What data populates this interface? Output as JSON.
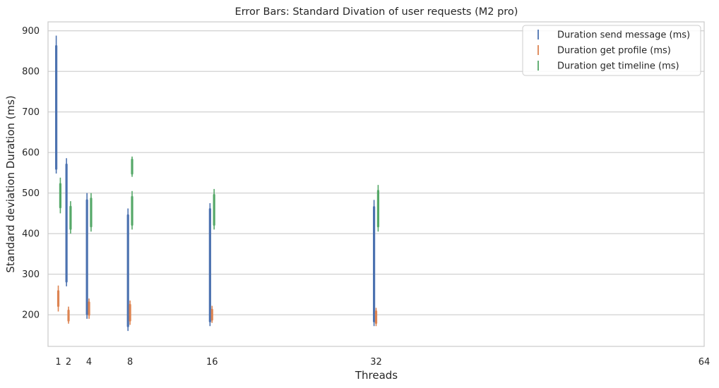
{
  "chart_data": {
    "type": "errorbar",
    "title": "Error Bars: Standard Divation of user requests (M2 pro)",
    "xlabel": "Threads",
    "ylabel": "Standard deviation Duration (ms)",
    "x_ticks": [
      1,
      2,
      4,
      8,
      16,
      32,
      64
    ],
    "x_tick_labels": [
      "1",
      "2",
      "4",
      "8",
      "16",
      "32",
      "64"
    ],
    "xlim": [
      0,
      64
    ],
    "y_ticks": [
      200,
      300,
      400,
      500,
      600,
      700,
      800,
      900
    ],
    "y_tick_labels": [
      "200",
      "300",
      "400",
      "500",
      "600",
      "700",
      "800",
      "900"
    ],
    "ylim": [
      122,
      922
    ],
    "grid": "horizontal",
    "legend_position": "top-right",
    "series": [
      {
        "name": "Duration send message (ms)",
        "color": "#4c72b0",
        "offset": -0.2,
        "points": [
          {
            "x": 1,
            "y": 718,
            "lower": 548,
            "upper": 888,
            "inner_lower": 560,
            "inner_upper": 862
          },
          {
            "x": 2,
            "y": 428,
            "lower": 270,
            "upper": 586,
            "inner_lower": 282,
            "inner_upper": 570
          },
          {
            "x": 4,
            "y": 345,
            "lower": 190,
            "upper": 500,
            "inner_lower": 202,
            "inner_upper": 482
          },
          {
            "x": 8,
            "y": 310,
            "lower": 160,
            "upper": 462,
            "inner_lower": 172,
            "inner_upper": 445
          },
          {
            "x": 16,
            "y": 323,
            "lower": 172,
            "upper": 475,
            "inner_lower": 184,
            "inner_upper": 460
          },
          {
            "x": 32,
            "y": 328,
            "lower": 172,
            "upper": 483,
            "inner_lower": 184,
            "inner_upper": 465
          }
        ]
      },
      {
        "name": "Duration get profile (ms)",
        "color": "#dd8452",
        "offset": 0,
        "points": [
          {
            "x": 1,
            "y": 240,
            "lower": 208,
            "upper": 272,
            "inner_lower": 222,
            "inner_upper": 258
          },
          {
            "x": 2,
            "y": 198,
            "lower": 178,
            "upper": 220,
            "inner_lower": 186,
            "inner_upper": 210
          },
          {
            "x": 4,
            "y": 215,
            "lower": 190,
            "upper": 240,
            "inner_lower": 200,
            "inner_upper": 230
          },
          {
            "x": 8,
            "y": 205,
            "lower": 175,
            "upper": 235,
            "inner_lower": 186,
            "inner_upper": 224
          },
          {
            "x": 16,
            "y": 200,
            "lower": 180,
            "upper": 222,
            "inner_lower": 188,
            "inner_upper": 212
          },
          {
            "x": 32,
            "y": 195,
            "lower": 172,
            "upper": 217,
            "inner_lower": 180,
            "inner_upper": 208
          }
        ]
      },
      {
        "name": "Duration get timeline (ms)",
        "color": "#55a868",
        "offset": 0.2,
        "points": [
          {
            "x": 1,
            "y": 494,
            "lower": 450,
            "upper": 538,
            "inner_lower": 465,
            "inner_upper": 522
          },
          {
            "x": 2,
            "y": 440,
            "lower": 400,
            "upper": 480,
            "inner_lower": 412,
            "inner_upper": 466
          },
          {
            "x": 4,
            "y": 452,
            "lower": 405,
            "upper": 500,
            "inner_lower": 418,
            "inner_upper": 486
          },
          {
            "x": 8,
            "y": 457,
            "lower": 410,
            "upper": 505,
            "inner_lower": 422,
            "inner_upper": 490
          },
          {
            "x": 8,
            "y": 565,
            "lower": 540,
            "upper": 590,
            "inner_lower": 548,
            "inner_upper": 582
          },
          {
            "x": 16,
            "y": 460,
            "lower": 410,
            "upper": 510,
            "inner_lower": 422,
            "inner_upper": 495
          },
          {
            "x": 32,
            "y": 463,
            "lower": 405,
            "upper": 520,
            "inner_lower": 418,
            "inner_upper": 505
          }
        ]
      }
    ]
  }
}
